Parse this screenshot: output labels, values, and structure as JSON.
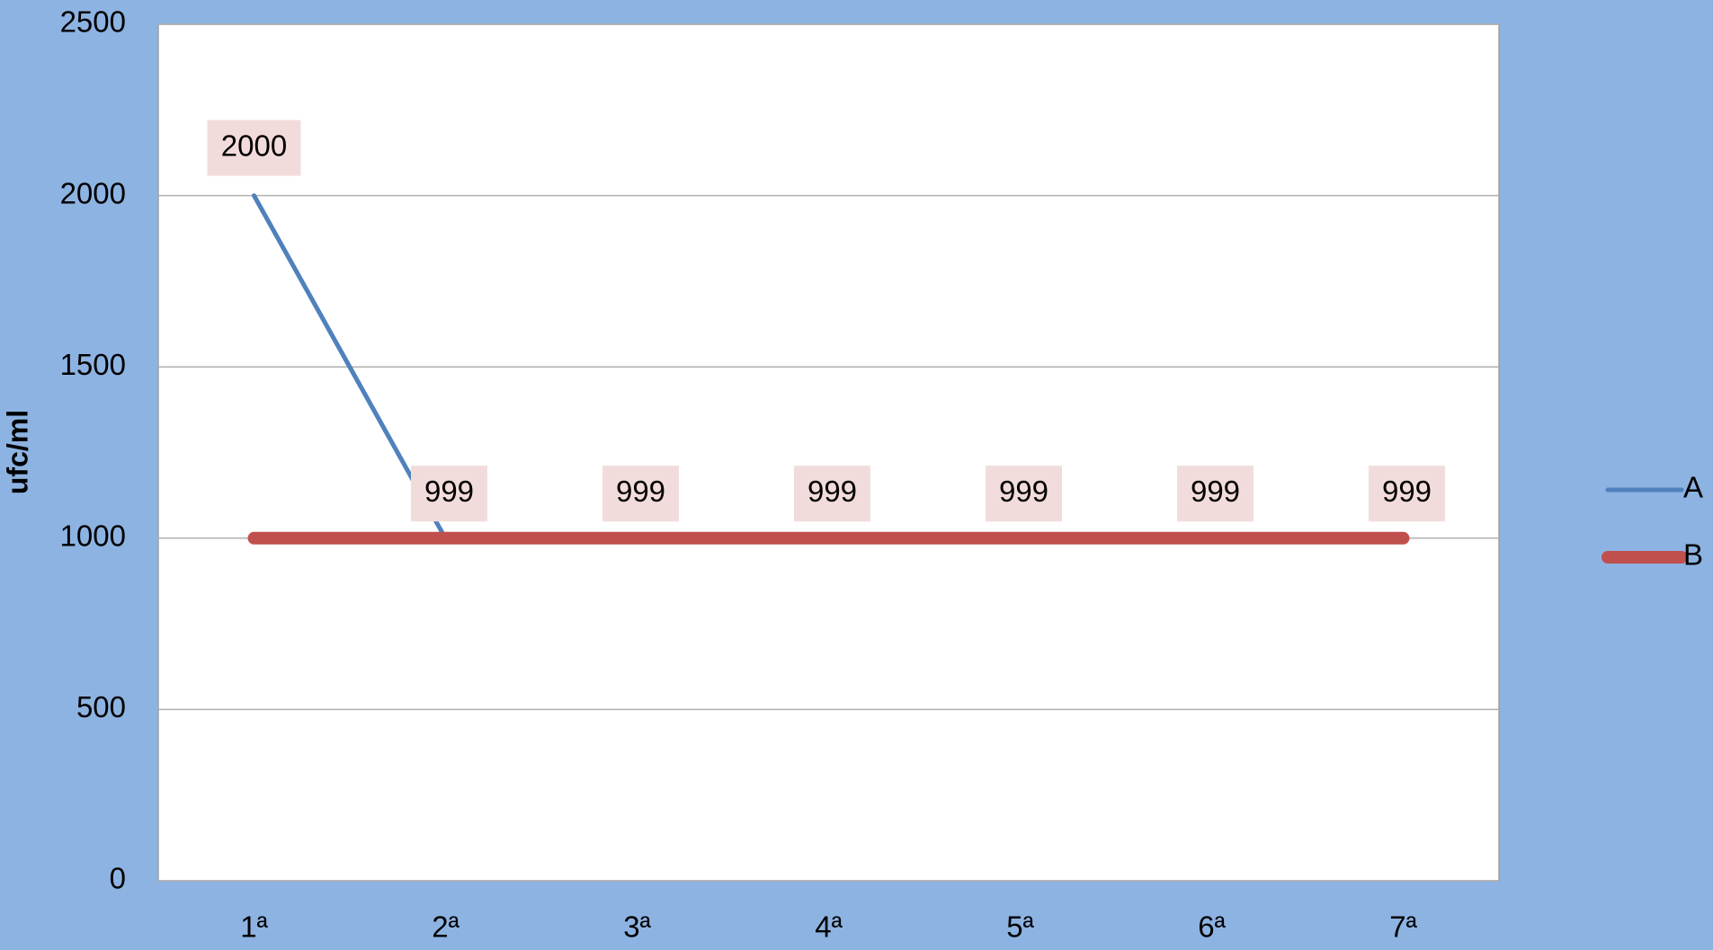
{
  "chart_data": {
    "type": "line",
    "y_label": "ufc/ml",
    "categories": [
      "1ª",
      "2ª",
      "3ª",
      "4ª",
      "5ª",
      "6ª",
      "7ª"
    ],
    "series": [
      {
        "name": "A",
        "color": "#4f81bd",
        "values": [
          2000,
          999,
          999,
          999,
          999,
          999,
          999
        ]
      },
      {
        "name": "B",
        "color": "#c0504d",
        "values": [
          1000,
          1000,
          1000,
          1000,
          1000,
          1000,
          1000
        ]
      }
    ],
    "ylim": [
      0,
      2500
    ],
    "yticks": [
      0,
      500,
      1000,
      1500,
      2000,
      2500
    ],
    "grid": true,
    "legend": "right"
  }
}
